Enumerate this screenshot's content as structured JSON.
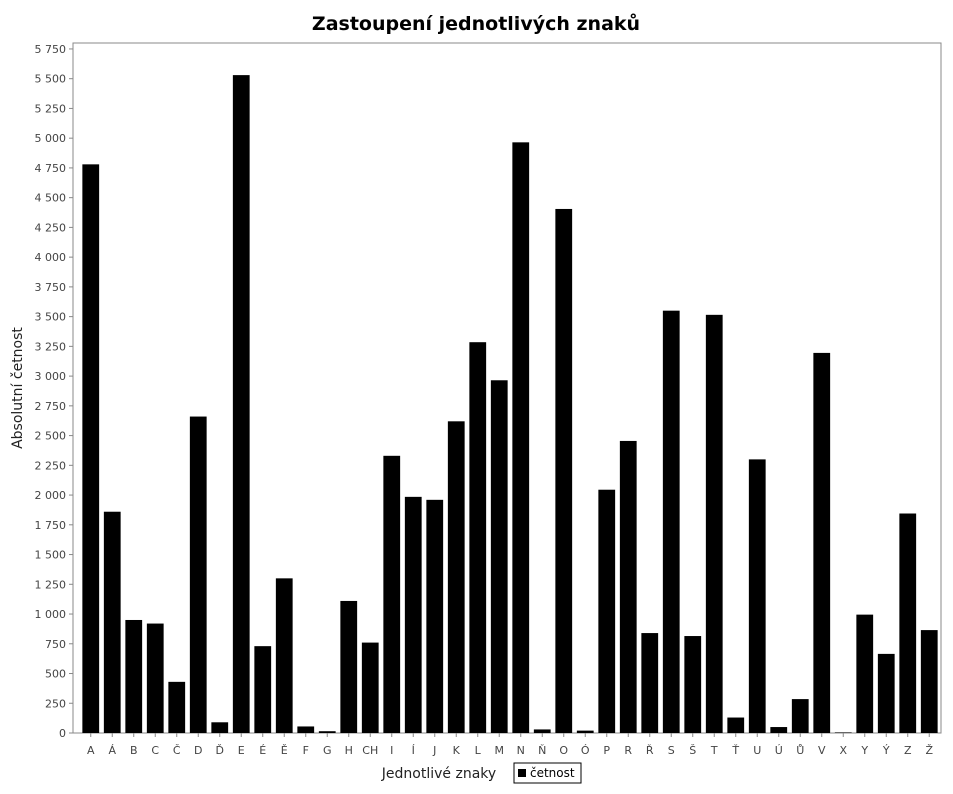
{
  "chart_data": {
    "type": "bar",
    "title": "Zastoupení jednotlivých znaků",
    "xlabel": "Jednotlivé znaky",
    "ylabel": "Absolutní četnost",
    "ylim": [
      0,
      5800
    ],
    "yticks": [
      0,
      250,
      500,
      750,
      1000,
      1250,
      1500,
      1750,
      2000,
      2250,
      2500,
      2750,
      3000,
      3250,
      3500,
      3750,
      4000,
      4250,
      4500,
      4750,
      5000,
      5250,
      5500,
      5750
    ],
    "ytick_labels": [
      "0",
      "250",
      "500",
      "750",
      "1 000",
      "1 250",
      "1 500",
      "1 750",
      "2 000",
      "2 250",
      "2 500",
      "2 750",
      "3 000",
      "3 250",
      "3 500",
      "3 750",
      "4 000",
      "4 250",
      "4 500",
      "4 750",
      "5 000",
      "5 250",
      "5 500",
      "5 750"
    ],
    "categories": [
      "A",
      "Á",
      "B",
      "C",
      "Č",
      "D",
      "Ď",
      "E",
      "É",
      "Ě",
      "F",
      "G",
      "H",
      "CH",
      "I",
      "Í",
      "J",
      "K",
      "L",
      "M",
      "N",
      "Ň",
      "O",
      "Ó",
      "P",
      "R",
      "Ř",
      "S",
      "Š",
      "T",
      "Ť",
      "U",
      "Ú",
      "Ů",
      "V",
      "X",
      "Y",
      "Ý",
      "Z",
      "Ž"
    ],
    "series": [
      {
        "name": "četnost",
        "color": "#000000",
        "values": [
          4780,
          1860,
          950,
          920,
          430,
          2660,
          90,
          5530,
          730,
          1300,
          55,
          15,
          1110,
          760,
          2330,
          1985,
          1960,
          2620,
          3285,
          2965,
          4965,
          30,
          4405,
          20,
          2045,
          2455,
          840,
          3550,
          815,
          3515,
          130,
          2300,
          50,
          285,
          3195,
          5,
          995,
          665,
          1845,
          865
        ]
      }
    ],
    "grid": false,
    "legend": "bottom"
  }
}
